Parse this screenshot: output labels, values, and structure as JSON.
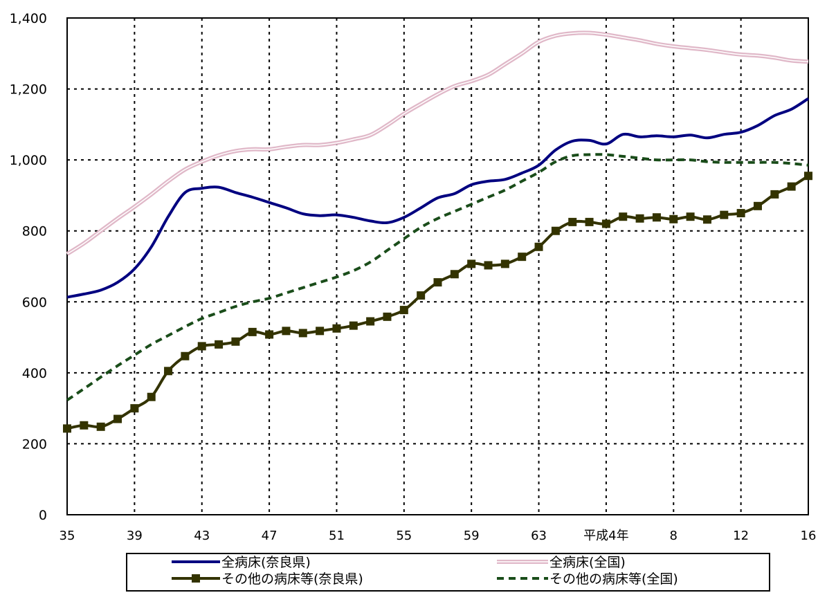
{
  "chart_data": {
    "type": "line",
    "title": "",
    "xlabel": "",
    "ylabel": "",
    "ylim": [
      0,
      1400
    ],
    "y_ticks": [
      "0",
      "200",
      "400",
      "600",
      "800",
      "1,000",
      "1,200",
      "1,400"
    ],
    "x_tick_labels": [
      "35",
      "39",
      "43",
      "47",
      "51",
      "55",
      "59",
      "63",
      "平成4年",
      "8",
      "12",
      "16"
    ],
    "grid": true,
    "legend_position": "bottom",
    "x": [
      0,
      1,
      2,
      3,
      4,
      5,
      6,
      7,
      8,
      9,
      10,
      11,
      12,
      13,
      14,
      15,
      16,
      17,
      18,
      19,
      20,
      21,
      22,
      23,
      24,
      25,
      26,
      27,
      28,
      29,
      30,
      31,
      32,
      33,
      34,
      35,
      36,
      37,
      38,
      39,
      40,
      41,
      42,
      43,
      44
    ],
    "series": [
      {
        "name": "全病床(奈良県)",
        "color": "#000080",
        "style": "solid",
        "values": [
          613,
          622,
          633,
          655,
          693,
          755,
          840,
          908,
          920,
          923,
          908,
          895,
          880,
          865,
          848,
          843,
          845,
          838,
          828,
          823,
          838,
          865,
          893,
          905,
          930,
          940,
          945,
          963,
          985,
          1028,
          1053,
          1055,
          1045,
          1072,
          1065,
          1068,
          1065,
          1070,
          1062,
          1072,
          1078,
          1097,
          1125,
          1143,
          1173
        ]
      },
      {
        "name": "全病床(全国)",
        "color": "#e0b8c8",
        "style": "double",
        "values": [
          735,
          765,
          800,
          835,
          868,
          903,
          940,
          973,
          995,
          1013,
          1025,
          1030,
          1030,
          1037,
          1042,
          1042,
          1048,
          1058,
          1070,
          1098,
          1130,
          1158,
          1185,
          1208,
          1222,
          1240,
          1270,
          1300,
          1333,
          1350,
          1357,
          1358,
          1353,
          1345,
          1337,
          1327,
          1320,
          1315,
          1310,
          1303,
          1297,
          1294,
          1288,
          1280,
          1277
        ]
      },
      {
        "name": "その他の病床等(奈良県)",
        "color": "#333300",
        "style": "solid-square",
        "values": [
          243,
          252,
          248,
          270,
          300,
          332,
          405,
          447,
          475,
          480,
          488,
          515,
          508,
          518,
          512,
          518,
          525,
          533,
          545,
          558,
          577,
          618,
          655,
          678,
          707,
          703,
          707,
          727,
          755,
          800,
          825,
          825,
          820,
          840,
          835,
          838,
          833,
          840,
          832,
          845,
          850,
          870,
          903,
          925,
          955
        ]
      },
      {
        "name": "その他の病床等(全国)",
        "color": "#1a4d1a",
        "style": "dashed",
        "values": [
          323,
          355,
          388,
          420,
          450,
          480,
          505,
          530,
          553,
          570,
          587,
          600,
          610,
          625,
          640,
          655,
          670,
          688,
          712,
          745,
          778,
          810,
          835,
          855,
          875,
          895,
          915,
          940,
          965,
          995,
          1012,
          1015,
          1015,
          1010,
          1005,
          1000,
          1000,
          1000,
          995,
          993,
          993,
          993,
          993,
          990,
          985
        ]
      }
    ]
  }
}
